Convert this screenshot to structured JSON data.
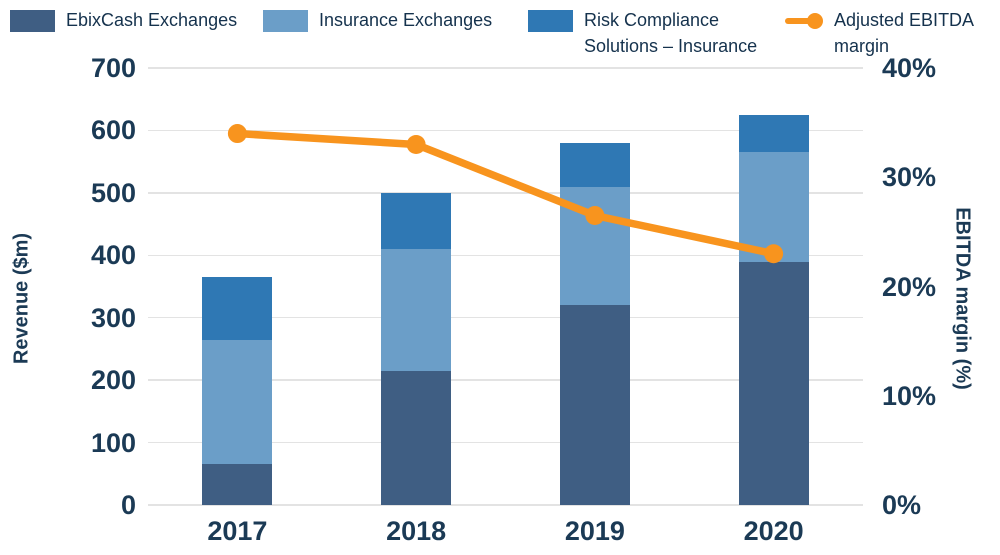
{
  "legend": [
    {
      "label": "EbixCash Exchanges",
      "color": "#3f5e83",
      "type": "square"
    },
    {
      "label": "Insurance Exchanges",
      "color": "#6b9ec8",
      "type": "square"
    },
    {
      "label": "Risk Compliance\nSolutions – Insurance",
      "color": "#2f78b4",
      "type": "square"
    },
    {
      "label": "Adjusted EBITDA\nmargin",
      "color": "#f8941e",
      "type": "line-dot"
    }
  ],
  "chart_data": {
    "type": "combo: stacked bar + line",
    "categories": [
      "2017",
      "2018",
      "2019",
      "2020"
    ],
    "series": [
      {
        "name": "EbixCash Exchanges",
        "type": "bar",
        "stack": "revenue",
        "color": "#3f5e83",
        "values": [
          65,
          215,
          320,
          390
        ]
      },
      {
        "name": "Insurance Exchanges",
        "type": "bar",
        "stack": "revenue",
        "color": "#6b9ec8",
        "values": [
          200,
          195,
          190,
          175
        ]
      },
      {
        "name": "Risk Compliance Solutions – Insurance",
        "type": "bar",
        "stack": "revenue",
        "color": "#2f78b4",
        "values": [
          100,
          90,
          70,
          60
        ]
      },
      {
        "name": "Adjusted EBITDA margin",
        "type": "line",
        "axis": "right",
        "color": "#f8941e",
        "values": [
          34,
          33,
          26.5,
          23
        ]
      }
    ],
    "stack_totals": [
      365,
      500,
      580,
      625
    ],
    "left_axis": {
      "label": "Revenue ($m)",
      "min": 0,
      "max": 700,
      "tick_step": 100,
      "ticks": [
        0,
        100,
        200,
        300,
        400,
        500,
        600,
        700
      ]
    },
    "right_axis": {
      "label": "EBITDA margin (%)",
      "min": 0,
      "max": 40,
      "tick_step": 10,
      "tick_labels": [
        "0%",
        "10%",
        "20%",
        "30%",
        "40%"
      ]
    },
    "grid": "horizontal",
    "legend_position": "top",
    "colors": {
      "text": "#1b3a55",
      "grid": "#e3e3e3",
      "background": "#ffffff"
    }
  }
}
